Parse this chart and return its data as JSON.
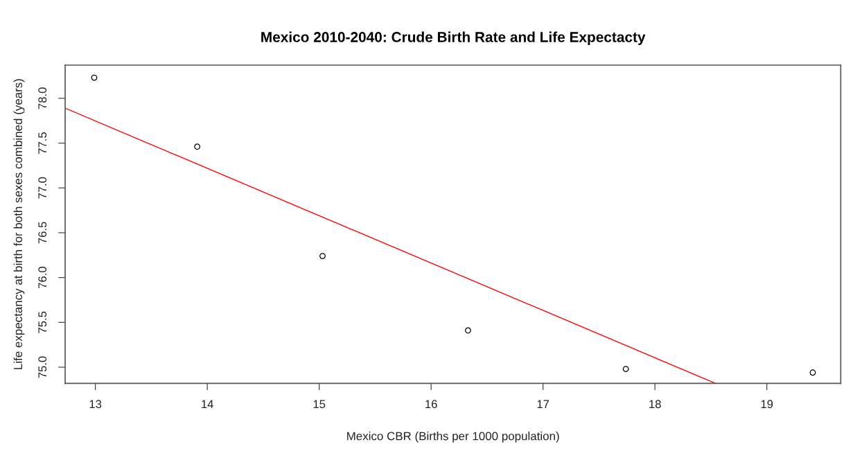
{
  "chart_data": {
    "type": "scatter",
    "title": "Mexico 2010-2040: Crude Birth Rate and Life Expectacty",
    "xlabel": "Mexico CBR (Births per 1000 population)",
    "ylabel": "Life expectancy at birth for both sexes combined (years)",
    "xlim": [
      12.73,
      19.66
    ],
    "ylim": [
      74.82,
      78.37
    ],
    "xticks": [
      13,
      14,
      15,
      16,
      17,
      18,
      19
    ],
    "yticks": [
      {
        "value": 75,
        "label": "75.0"
      },
      {
        "value": 75.5,
        "label": "75.5"
      },
      {
        "value": 76,
        "label": "76.0"
      },
      {
        "value": 76.5,
        "label": "76.5"
      },
      {
        "value": 77,
        "label": "77.0"
      },
      {
        "value": 77.5,
        "label": "77.5"
      },
      {
        "value": 78,
        "label": "78.0"
      }
    ],
    "series": [
      {
        "marker": "circle",
        "color": "#000000",
        "x": [
          12.99,
          13.91,
          15.03,
          16.33,
          17.74,
          19.41
        ],
        "values": [
          78.23,
          77.46,
          76.24,
          75.41,
          74.98,
          74.94
        ]
      },
      {
        "type": "line",
        "marker": "none",
        "line_style": "solid",
        "color": "#ff0000",
        "x": [
          12.73,
          18.54
        ],
        "values": [
          77.89,
          74.82
        ]
      }
    ]
  }
}
